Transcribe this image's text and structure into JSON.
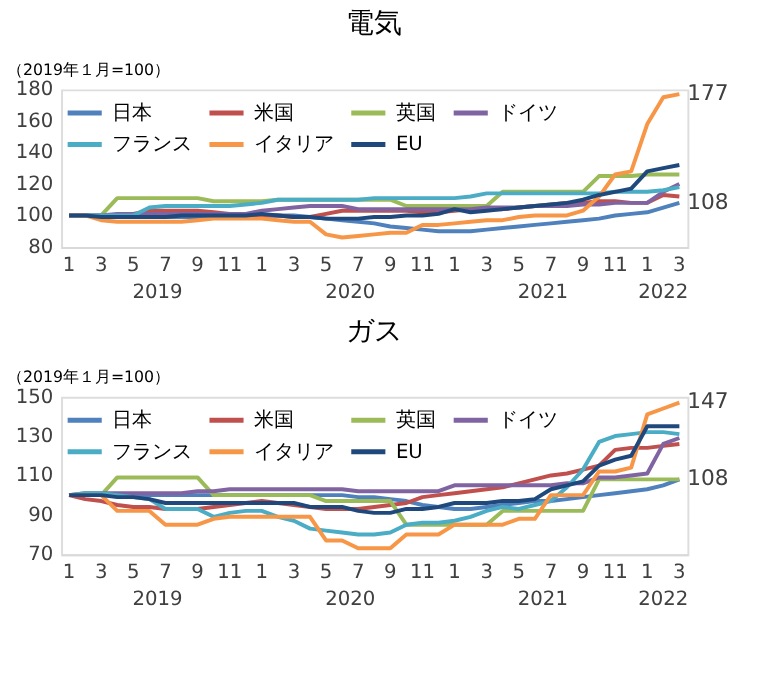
{
  "chart_data": [
    {
      "type": "line",
      "title": "電気",
      "ylabel": "（2019年１月=100）",
      "categories": [
        "1",
        null,
        "3",
        null,
        "5",
        null,
        "7",
        null,
        "9",
        null,
        "11",
        null,
        "1",
        null,
        "3",
        null,
        "5",
        null,
        "7",
        null,
        "9",
        null,
        "11",
        null,
        "1",
        null,
        "3",
        null,
        "5",
        null,
        "7",
        null,
        "9",
        null,
        "11",
        null,
        "1",
        null,
        "3"
      ],
      "annotations": [
        "2019",
        "2020",
        "2021",
        "2022"
      ],
      "ylim": [
        80,
        180
      ],
      "yticks": [
        80,
        100,
        120,
        140,
        160,
        180
      ],
      "grid": false,
      "legend": "top",
      "marker": "none",
      "line_style": "solid",
      "series": [
        {
          "name": "日本",
          "color": "#4f81bd",
          "values": [
            100,
            100,
            100,
            100,
            100,
            100,
            99,
            99,
            99,
            99,
            100,
            100,
            100,
            100,
            100,
            99,
            98,
            97,
            96,
            95,
            93,
            92,
            91,
            90,
            90,
            90,
            91,
            92,
            93,
            94,
            95,
            96,
            97,
            98,
            100,
            101,
            102,
            105,
            108
          ],
          "value_labels": [
            null,
            null,
            null,
            null,
            null,
            null,
            null,
            null,
            null,
            null,
            null,
            null,
            null,
            null,
            null,
            null,
            null,
            null,
            null,
            null,
            null,
            null,
            null,
            null,
            null,
            null,
            null,
            null,
            null,
            null,
            null,
            null,
            null,
            null,
            null,
            null,
            null,
            null,
            "108"
          ]
        },
        {
          "name": "米国",
          "color": "#c0504d",
          "values": [
            100,
            100,
            99,
            100,
            101,
            103,
            103,
            103,
            103,
            102,
            101,
            100,
            100,
            100,
            99,
            99,
            101,
            103,
            103,
            103,
            103,
            103,
            102,
            102,
            103,
            104,
            104,
            104,
            105,
            106,
            107,
            108,
            108,
            109,
            109,
            108,
            108,
            113,
            112
          ]
        },
        {
          "name": "英国",
          "color": "#9bbb59",
          "values": [
            100,
            100,
            100,
            111,
            111,
            111,
            111,
            111,
            111,
            109,
            109,
            109,
            109,
            110,
            110,
            110,
            110,
            110,
            110,
            110,
            110,
            106,
            106,
            106,
            106,
            106,
            106,
            115,
            115,
            115,
            115,
            115,
            115,
            125,
            125,
            125,
            126,
            126,
            126
          ]
        },
        {
          "name": "ドイツ",
          "color": "#8064a2",
          "values": [
            100,
            100,
            100,
            101,
            101,
            101,
            101,
            101,
            101,
            101,
            101,
            101,
            103,
            104,
            105,
            106,
            106,
            106,
            104,
            104,
            104,
            104,
            104,
            104,
            104,
            104,
            105,
            105,
            105,
            106,
            106,
            106,
            107,
            107,
            108,
            108,
            108,
            115,
            120
          ]
        },
        {
          "name": "フランス",
          "color": "#4bacc6",
          "values": [
            100,
            100,
            100,
            100,
            100,
            105,
            106,
            106,
            106,
            106,
            106,
            107,
            108,
            110,
            110,
            110,
            110,
            110,
            110,
            111,
            111,
            111,
            111,
            111,
            111,
            112,
            114,
            114,
            114,
            114,
            114,
            114,
            114,
            114,
            115,
            115,
            115,
            116,
            118
          ]
        },
        {
          "name": "イタリア",
          "color": "#f79646",
          "values": [
            100,
            100,
            97,
            96,
            96,
            96,
            96,
            96,
            97,
            98,
            98,
            98,
            98,
            97,
            96,
            96,
            88,
            86,
            87,
            88,
            89,
            89,
            94,
            94,
            95,
            96,
            97,
            97,
            99,
            100,
            100,
            100,
            103,
            112,
            126,
            128,
            158,
            175,
            177
          ],
          "value_labels": [
            null,
            null,
            null,
            null,
            null,
            null,
            null,
            null,
            null,
            null,
            null,
            null,
            null,
            null,
            null,
            null,
            null,
            null,
            null,
            null,
            null,
            null,
            null,
            null,
            null,
            null,
            null,
            null,
            null,
            null,
            null,
            null,
            null,
            null,
            null,
            null,
            null,
            null,
            "177"
          ]
        },
        {
          "name": "EU",
          "color": "#1f497d",
          "values": [
            100,
            100,
            99,
            99,
            99,
            99,
            99,
            100,
            100,
            100,
            100,
            100,
            101,
            100,
            99,
            99,
            98,
            98,
            98,
            99,
            99,
            100,
            100,
            101,
            104,
            102,
            103,
            104,
            105,
            106,
            107,
            108,
            110,
            113,
            115,
            117,
            128,
            130,
            132
          ]
        }
      ]
    },
    {
      "type": "line",
      "title": "ガス",
      "ylabel": "（2019年１月=100）",
      "categories": [
        "1",
        null,
        "3",
        null,
        "5",
        null,
        "7",
        null,
        "9",
        null,
        "11",
        null,
        "1",
        null,
        "3",
        null,
        "5",
        null,
        "7",
        null,
        "9",
        null,
        "11",
        null,
        "1",
        null,
        "3",
        null,
        "5",
        null,
        "7",
        null,
        "9",
        null,
        "11",
        null,
        "1",
        null,
        "3"
      ],
      "annotations": [
        "2019",
        "2020",
        "2021",
        "2022"
      ],
      "ylim": [
        70,
        150
      ],
      "yticks": [
        70,
        90,
        110,
        130,
        150
      ],
      "grid": false,
      "legend": "top",
      "marker": "none",
      "line_style": "solid",
      "series": [
        {
          "name": "日本",
          "color": "#4f81bd",
          "values": [
            100,
            100,
            100,
            100,
            100,
            100,
            100,
            100,
            100,
            100,
            100,
            100,
            100,
            100,
            100,
            100,
            100,
            100,
            99,
            99,
            98,
            97,
            95,
            94,
            93,
            93,
            94,
            95,
            96,
            97,
            97,
            98,
            99,
            100,
            101,
            102,
            103,
            105,
            108
          ],
          "value_labels": [
            null,
            null,
            null,
            null,
            null,
            null,
            null,
            null,
            null,
            null,
            null,
            null,
            null,
            null,
            null,
            null,
            null,
            null,
            null,
            null,
            null,
            null,
            null,
            null,
            null,
            null,
            null,
            null,
            null,
            null,
            null,
            null,
            null,
            null,
            null,
            null,
            null,
            null,
            "108"
          ]
        },
        {
          "name": "米国",
          "color": "#c0504d",
          "values": [
            100,
            98,
            97,
            95,
            94,
            94,
            93,
            93,
            93,
            94,
            95,
            96,
            97,
            96,
            95,
            94,
            93,
            93,
            93,
            94,
            95,
            96,
            99,
            100,
            101,
            102,
            103,
            104,
            106,
            108,
            110,
            111,
            113,
            115,
            123,
            124,
            124,
            125,
            126
          ]
        },
        {
          "name": "英国",
          "color": "#9bbb59",
          "values": [
            100,
            100,
            100,
            109,
            109,
            109,
            109,
            109,
            109,
            100,
            100,
            100,
            100,
            100,
            100,
            100,
            97,
            97,
            97,
            97,
            97,
            85,
            85,
            85,
            85,
            85,
            85,
            92,
            92,
            92,
            92,
            92,
            92,
            108,
            108,
            108,
            108,
            108,
            108
          ]
        },
        {
          "name": "ドイツ",
          "color": "#8064a2",
          "values": [
            100,
            101,
            101,
            101,
            101,
            101,
            101,
            101,
            102,
            102,
            103,
            103,
            103,
            103,
            103,
            103,
            103,
            103,
            102,
            102,
            102,
            102,
            102,
            102,
            105,
            105,
            105,
            105,
            105,
            105,
            105,
            106,
            106,
            109,
            109,
            110,
            111,
            126,
            129
          ]
        },
        {
          "name": "フランス",
          "color": "#4bacc6",
          "values": [
            100,
            101,
            101,
            100,
            99,
            98,
            93,
            93,
            93,
            89,
            91,
            92,
            92,
            89,
            87,
            83,
            82,
            81,
            80,
            80,
            81,
            85,
            86,
            86,
            87,
            89,
            92,
            94,
            93,
            95,
            97,
            104,
            113,
            127,
            130,
            131,
            132,
            132,
            131
          ]
        },
        {
          "name": "イタリア",
          "color": "#f79646",
          "values": [
            100,
            100,
            100,
            92,
            92,
            92,
            85,
            85,
            85,
            88,
            89,
            89,
            89,
            89,
            89,
            89,
            77,
            77,
            73,
            73,
            73,
            80,
            80,
            80,
            85,
            85,
            85,
            85,
            88,
            88,
            100,
            100,
            100,
            112,
            112,
            114,
            141,
            144,
            147
          ],
          "value_labels": [
            null,
            null,
            null,
            null,
            null,
            null,
            null,
            null,
            null,
            null,
            null,
            null,
            null,
            null,
            null,
            null,
            null,
            null,
            null,
            null,
            null,
            null,
            null,
            null,
            null,
            null,
            null,
            null,
            null,
            null,
            null,
            null,
            null,
            null,
            null,
            null,
            null,
            null,
            "147"
          ]
        },
        {
          "name": "EU",
          "color": "#1f497d",
          "values": [
            100,
            100,
            100,
            99,
            99,
            98,
            96,
            96,
            96,
            96,
            96,
            96,
            96,
            96,
            96,
            94,
            94,
            94,
            92,
            91,
            91,
            93,
            93,
            94,
            96,
            96,
            96,
            97,
            97,
            98,
            103,
            105,
            107,
            115,
            118,
            120,
            135,
            135,
            135
          ]
        }
      ]
    }
  ]
}
